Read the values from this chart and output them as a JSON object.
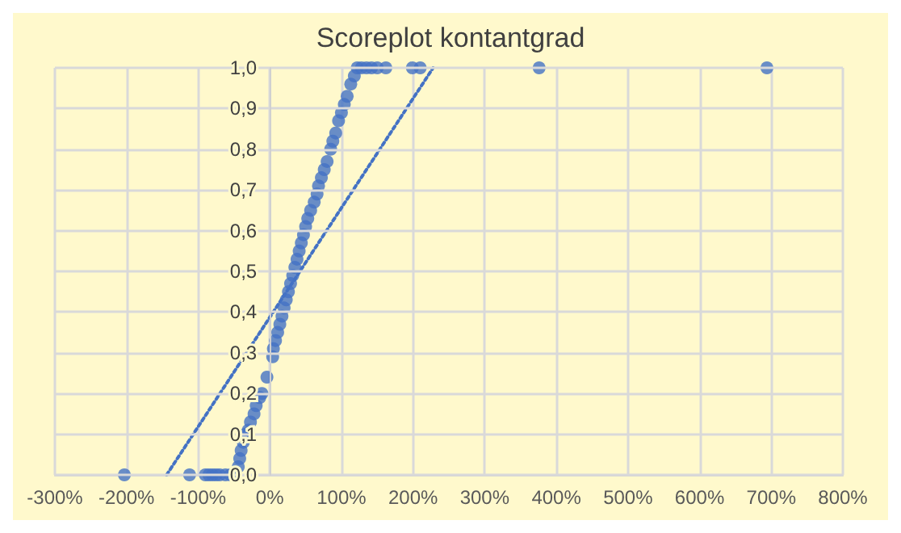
{
  "chart_data": {
    "type": "scatter",
    "title": "Scoreplot kontantgrad",
    "series": [
      {
        "color": "#4472c4",
        "marker": "circle",
        "x": [
          -203,
          -112,
          -90,
          -85,
          -80,
          -75,
          -70,
          -62,
          -55,
          -44,
          -42,
          -40,
          -37,
          -34,
          -30,
          -27,
          -22,
          -19,
          -14,
          -11,
          -4,
          4,
          5,
          8,
          11,
          14,
          17,
          20,
          23,
          26,
          29,
          32,
          35,
          38,
          41,
          44,
          47,
          50,
          53,
          57,
          62,
          66,
          68,
          72,
          76,
          80,
          85,
          88,
          92,
          96,
          100,
          104,
          108,
          113,
          118,
          122,
          128,
          135,
          142,
          150,
          162,
          199,
          210,
          376,
          694
        ],
        "values": [
          0,
          0,
          0,
          0,
          0,
          0,
          0,
          0,
          0,
          0.02,
          0.04,
          0.06,
          0.08,
          0.1,
          0.11,
          0.13,
          0.15,
          0.17,
          0.19,
          0.2,
          0.24,
          0.29,
          0.31,
          0.33,
          0.35,
          0.37,
          0.39,
          0.41,
          0.43,
          0.45,
          0.47,
          0.49,
          0.51,
          0.53,
          0.55,
          0.57,
          0.59,
          0.61,
          0.63,
          0.65,
          0.67,
          0.69,
          0.71,
          0.73,
          0.75,
          0.77,
          0.8,
          0.82,
          0.84,
          0.87,
          0.89,
          0.91,
          0.93,
          0.96,
          0.98,
          1,
          1,
          1,
          1,
          1,
          1,
          1,
          1,
          1,
          1
        ]
      },
      {
        "type": "line",
        "line_style": "dotted",
        "color": "#4472c4",
        "x": [
          -144,
          228
        ],
        "values": [
          0,
          1
        ]
      }
    ],
    "grid": true,
    "xlim": [
      -300,
      800
    ],
    "ylim": [
      0,
      1
    ],
    "xticks": [
      {
        "value": -300,
        "label": "-300%"
      },
      {
        "value": -200,
        "label": "-200%"
      },
      {
        "value": -100,
        "label": "-100%"
      },
      {
        "value": 0,
        "label": "0%"
      },
      {
        "value": 100,
        "label": "100%"
      },
      {
        "value": 200,
        "label": "200%"
      },
      {
        "value": 300,
        "label": "300%"
      },
      {
        "value": 400,
        "label": "400%"
      },
      {
        "value": 500,
        "label": "500%"
      },
      {
        "value": 600,
        "label": "600%"
      },
      {
        "value": 700,
        "label": "700%"
      },
      {
        "value": 800,
        "label": "800%"
      }
    ],
    "yticks": [
      {
        "value": 0,
        "label": "0,0"
      },
      {
        "value": 0.1,
        "label": "0,1"
      },
      {
        "value": 0.2,
        "label": "0,2"
      },
      {
        "value": 0.3,
        "label": "0,3"
      },
      {
        "value": 0.4,
        "label": "0,4"
      },
      {
        "value": 0.5,
        "label": "0,5"
      },
      {
        "value": 0.6,
        "label": "0,6"
      },
      {
        "value": 0.7,
        "label": "0,7"
      },
      {
        "value": 0.8,
        "label": "0,8"
      },
      {
        "value": 0.9,
        "label": "0,9"
      },
      {
        "value": 1,
        "label": "1,0"
      }
    ]
  }
}
